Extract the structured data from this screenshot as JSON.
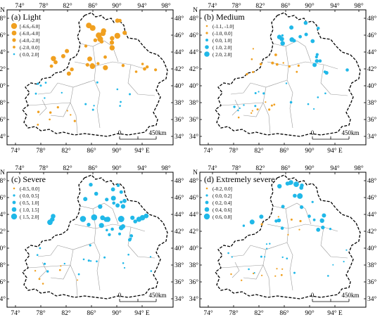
{
  "colors": {
    "orange": "#f0a020",
    "cyan": "#20b8e8",
    "boundary": "#000000",
    "internal_boundary": "#9a9a9a"
  },
  "axis_labels": {
    "top": [
      "74°",
      "78°",
      "82°",
      "86°",
      "90°",
      "94°",
      "98°"
    ],
    "bottom": [
      "74°",
      "78°",
      "82°",
      "86°",
      "90°",
      "94° E"
    ],
    "left": [
      "N",
      "48°",
      "46°",
      "44°",
      "42°",
      "40°",
      "38°",
      "36°",
      "34°"
    ],
    "right": [
      "48°",
      "46°",
      "44°",
      "42°",
      "40°",
      "38°",
      "36°",
      "34°"
    ]
  },
  "scale_bar": {
    "zero": "0",
    "end": "450km"
  },
  "panels": [
    {
      "title": "(a) Light",
      "legend": [
        {
          "label": "[-6.6,-6.0]",
          "color": "orange"
        },
        {
          "label": "(-6.0,-4.0]",
          "color": "orange"
        },
        {
          "label": "(-4.0,-2.0]",
          "color": "orange"
        },
        {
          "label": "(-2.0, 0.0]",
          "color": "orange"
        },
        {
          "label": "( 0.0, 2.0]",
          "color": "cyan"
        }
      ]
    },
    {
      "title": "(b) Medium",
      "legend": [
        {
          "label": "(-1.1, -1.0]",
          "color": "orange"
        },
        {
          "label": "(-1.0,  0.0]",
          "color": "orange"
        },
        {
          "label": "( 0.0,  1.0]",
          "color": "cyan"
        },
        {
          "label": "( 1.0,  2.0]",
          "color": "cyan"
        },
        {
          "label": "( 2.0,  2.8]",
          "color": "cyan"
        }
      ]
    },
    {
      "title": "(c) Severe",
      "legend": [
        {
          "label": "(-0.5,  0.0]",
          "color": "orange"
        },
        {
          "label": "( 0.0,  0.5]",
          "color": "cyan"
        },
        {
          "label": "( 0.5,  1.0]",
          "color": "cyan"
        },
        {
          "label": "( 1.0,  1.5]",
          "color": "cyan"
        },
        {
          "label": "( 1.5,  2.0]",
          "color": "cyan"
        }
      ]
    },
    {
      "title": "(d) Extremely severe",
      "legend": [
        {
          "label": "(-0.2,  0.0]",
          "color": "orange"
        },
        {
          "label": "( 0.0,  0.2]",
          "color": "cyan"
        },
        {
          "label": "( 0.2,  0.4]",
          "color": "cyan"
        },
        {
          "label": "( 0.4,  0.6]",
          "color": "cyan"
        },
        {
          "label": "( 0.6,  0.8]",
          "color": "cyan"
        }
      ]
    }
  ]
}
